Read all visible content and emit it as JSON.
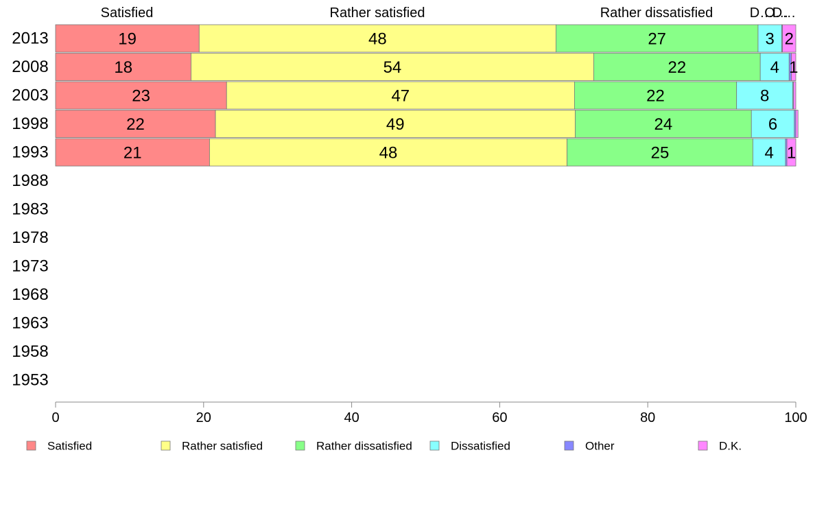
{
  "chart_data": {
    "type": "bar",
    "orientation": "horizontal",
    "stacked": true,
    "xlim": [
      0,
      100
    ],
    "x_ticks": [
      "0",
      "20",
      "40",
      "60",
      "80",
      "100"
    ],
    "top_labels": [
      "Satisfied",
      "Rather satisfied",
      "Rather dissatisfied",
      "D…",
      "O…",
      "D…"
    ],
    "categories": [
      "2013",
      "2008",
      "2003",
      "1998",
      "1993",
      "1988",
      "1983",
      "1978",
      "1973",
      "1968",
      "1963",
      "1958",
      "1953"
    ],
    "series": [
      {
        "name": "Satisfied",
        "color": "#ff8888",
        "values": [
          19.4,
          18.3,
          23.1,
          21.6,
          20.8,
          null,
          null,
          null,
          null,
          null,
          null,
          null,
          null
        ],
        "labels": [
          "19",
          "18",
          "23",
          "22",
          "21",
          "",
          "",
          "",
          "",
          "",
          "",
          "",
          ""
        ]
      },
      {
        "name": "Rather satisfied",
        "color": "#ffff88",
        "values": [
          48.2,
          54.4,
          47.0,
          48.6,
          48.3,
          null,
          null,
          null,
          null,
          null,
          null,
          null,
          null
        ],
        "labels": [
          "48",
          "54",
          "47",
          "49",
          "48",
          "",
          "",
          "",
          "",
          "",
          "",
          "",
          ""
        ]
      },
      {
        "name": "Rather dissatisfied",
        "color": "#88ff88",
        "values": [
          27.3,
          22.5,
          21.9,
          23.8,
          25.1,
          null,
          null,
          null,
          null,
          null,
          null,
          null,
          null
        ],
        "labels": [
          "27",
          "22",
          "22",
          "24",
          "25",
          "",
          "",
          "",
          "",
          "",
          "",
          "",
          ""
        ]
      },
      {
        "name": "Dissatisfied",
        "color": "#88ffff",
        "values": [
          3.2,
          3.9,
          7.6,
          5.8,
          4.4,
          null,
          null,
          null,
          null,
          null,
          null,
          null,
          null
        ],
        "labels": [
          "3",
          "4",
          "8",
          "6",
          "4",
          "",
          "",
          "",
          "",
          "",
          "",
          "",
          ""
        ]
      },
      {
        "name": "Other",
        "color": "#8888ff",
        "values": [
          0.1,
          0.3,
          0.1,
          0.2,
          0.2,
          null,
          null,
          null,
          null,
          null,
          null,
          null,
          null
        ],
        "labels": [
          "",
          "",
          "",
          "",
          "",
          "",
          "",
          "",
          "",
          "",
          "",
          "",
          ""
        ]
      },
      {
        "name": "D.K.",
        "color": "#ff88ff",
        "values": [
          1.8,
          0.6,
          0.3,
          0.3,
          1.2,
          null,
          null,
          null,
          null,
          null,
          null,
          null,
          null
        ],
        "labels": [
          "2",
          "1",
          "",
          "",
          "1",
          "",
          "",
          "",
          "",
          "",
          "",
          "",
          ""
        ]
      }
    ],
    "legend": [
      "Satisfied",
      "Rather satisfied",
      "Rather dissatisfied",
      "Dissatisfied",
      "Other",
      "D.K."
    ],
    "legend_position": "bottom",
    "grid": false
  }
}
